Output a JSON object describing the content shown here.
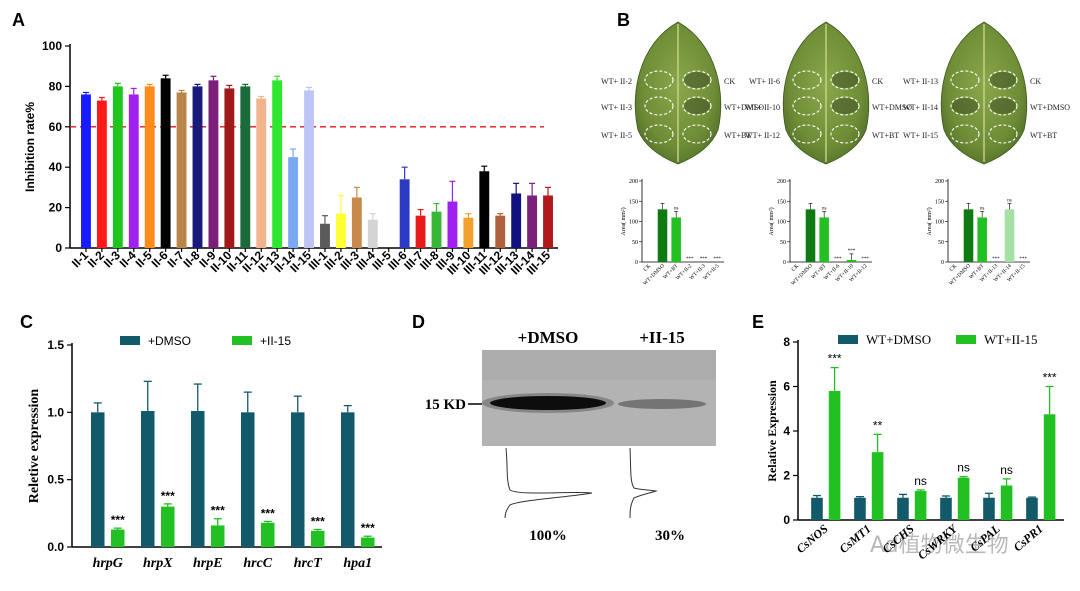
{
  "watermark": "Ad植物微生物",
  "chart_data": [
    {
      "panel": "A",
      "type": "bar",
      "ylabel": "Inhibition rate%",
      "ylim": [
        0,
        100
      ],
      "yticks": [
        0,
        20,
        40,
        60,
        80,
        100
      ],
      "threshold": 60,
      "categories": [
        "II-1",
        "II-2",
        "II-3",
        "II-4",
        "II-5",
        "II-6",
        "II-7",
        "II-8",
        "II-9",
        "II-10",
        "II-11",
        "II-12",
        "II-13",
        "II-14",
        "II-15",
        "III-1",
        "III-2",
        "III-3",
        "III-4",
        "III-5",
        "III-6",
        "III-7",
        "III-8",
        "III-9",
        "III-10",
        "III-11",
        "III-12",
        "III-13",
        "III-14",
        "III-15"
      ],
      "values": [
        76,
        73,
        80,
        76,
        80,
        84,
        77,
        80,
        83,
        79,
        80,
        74,
        83,
        45,
        78,
        12,
        17,
        25,
        14,
        0,
        34,
        16,
        18,
        23,
        15,
        38,
        16,
        27,
        26,
        26
      ],
      "errors": [
        1,
        1.5,
        1.5,
        3,
        1,
        1.5,
        1,
        1,
        2,
        1.5,
        1,
        1,
        2,
        4,
        1.5,
        4,
        9,
        5,
        3,
        0,
        6,
        3,
        4,
        10,
        2,
        2.5,
        1,
        5,
        6,
        4
      ],
      "colors": [
        "#1a1aff",
        "#ff1a1a",
        "#1fc41f",
        "#a020f0",
        "#ff8c1a",
        "#000000",
        "#b8864b",
        "#1a1a7a",
        "#7a1f7a",
        "#a01a1a",
        "#1a6b3a",
        "#f2b48c",
        "#2ee62e",
        "#7aa8f2",
        "#bfc4f7",
        "#5a5a5a",
        "#ffff33",
        "#c88a4b",
        "#d4d4d4",
        "#1fb81f",
        "#2b3ac4",
        "#e61a1a",
        "#36b836",
        "#a020f0",
        "#f2a02e",
        "#000000",
        "#b0603a",
        "#101080",
        "#7a1f7a",
        "#b01a1a"
      ]
    },
    {
      "panel": "B",
      "type": "bar",
      "groups": [
        {
          "leaf_labels": [
            "WT+ II-2",
            "WT+ II-3",
            "WT+ II-5",
            "CK",
            "WT+DMSO",
            "WT+BT"
          ],
          "ylabel": "Area( mm²)",
          "ylim": [
            0,
            200
          ],
          "yticks": [
            0,
            50,
            100,
            150,
            200
          ],
          "categories": [
            "CK",
            "WT+DMSO",
            "WT+BT",
            "WT+II-2",
            "WT+II-3",
            "WT+II-5"
          ],
          "values": [
            0,
            130,
            110,
            0,
            0,
            0
          ],
          "sig": [
            "",
            "",
            "ns",
            "***",
            "***",
            "***"
          ]
        },
        {
          "leaf_labels": [
            "WT+ II-6",
            "WT+ II-10",
            "WT+ II-12",
            "CK",
            "WT+DMSO",
            "WT+BT"
          ],
          "ylabel": "Area( mm²)",
          "ylim": [
            0,
            200
          ],
          "yticks": [
            0,
            50,
            100,
            150,
            200
          ],
          "categories": [
            "CK",
            "WT+DMSO",
            "WT+BT",
            "WT+II-6",
            "WT+II-10",
            "WT+II-12"
          ],
          "values": [
            0,
            130,
            110,
            0,
            5,
            0
          ],
          "sig": [
            "",
            "",
            "ns",
            "***",
            "***",
            "***"
          ]
        },
        {
          "leaf_labels": [
            "WT+ II-13",
            "WT+ II-14",
            "WT+ II-15",
            "CK",
            "WT+DMSO",
            "WT+BT"
          ],
          "ylabel": "Area( mm²)",
          "ylim": [
            0,
            200
          ],
          "yticks": [
            0,
            50,
            100,
            150,
            200
          ],
          "categories": [
            "CK",
            "WT+DMSO",
            "WT+BT",
            "WT+II-13",
            "WT+II-14",
            "WT+II-15"
          ],
          "values": [
            0,
            130,
            110,
            0,
            130,
            0
          ],
          "sig": [
            "",
            "",
            "ns",
            "***",
            "ns",
            "***"
          ]
        }
      ]
    },
    {
      "panel": "C",
      "type": "bar",
      "ylabel": "Reletive expression",
      "ylim": [
        0,
        1.5
      ],
      "yticks": [
        "0.0",
        "0.5",
        "1.0",
        "1.5"
      ],
      "categories": [
        "hrpG",
        "hrpX",
        "hrpE",
        "hrcC",
        "hrcT",
        "hpa1"
      ],
      "series": [
        {
          "name": "+DMSO",
          "color": "#125a6a",
          "values": [
            1.0,
            1.01,
            1.01,
            1.0,
            1.0,
            1.0
          ],
          "errors": [
            0.07,
            0.22,
            0.2,
            0.15,
            0.12,
            0.05
          ]
        },
        {
          "name": "+II-15",
          "color": "#22c022",
          "values": [
            0.13,
            0.3,
            0.16,
            0.18,
            0.12,
            0.07
          ],
          "errors": [
            0.01,
            0.02,
            0.05,
            0.01,
            0.01,
            0.01
          ]
        }
      ],
      "sig": [
        "***",
        "***",
        "***",
        "***",
        "***",
        "***"
      ]
    },
    {
      "panel": "D",
      "type": "blot",
      "lane_labels": [
        "+DMSO",
        "+II-15"
      ],
      "marker": "15 KD",
      "percent_labels": [
        "100%",
        "30%"
      ],
      "intensities": [
        100,
        30
      ]
    },
    {
      "panel": "E",
      "type": "bar",
      "ylabel": "Relative Expression",
      "ylim": [
        0,
        8
      ],
      "yticks": [
        0,
        2,
        4,
        6,
        8
      ],
      "categories": [
        "CsNOS",
        "CsMT1",
        "CsCHS",
        "CsWRKY",
        "CsPAL",
        "CsPR1"
      ],
      "series": [
        {
          "name": "WT+DMSO",
          "color": "#125a6a",
          "values": [
            1.0,
            1.0,
            1.0,
            1.0,
            1.0,
            1.0
          ],
          "errors": [
            0.1,
            0.05,
            0.15,
            0.08,
            0.2,
            0.03
          ]
        },
        {
          "name": "WT+II-15",
          "color": "#22c022",
          "values": [
            5.8,
            3.05,
            1.3,
            1.9,
            1.55,
            4.75
          ],
          "errors": [
            1.05,
            0.8,
            0.05,
            0.05,
            0.3,
            1.25
          ]
        }
      ],
      "sig": [
        "***",
        "**",
        "ns",
        "ns",
        "ns",
        "***"
      ]
    }
  ]
}
